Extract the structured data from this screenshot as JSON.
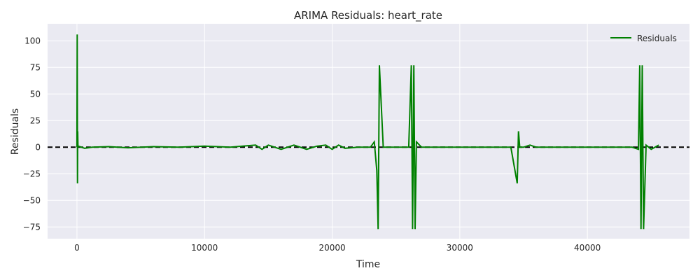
{
  "chart_data": {
    "type": "line",
    "title": "ARIMA Residuals: heart_rate",
    "xlabel": "Time",
    "ylabel": "Residuals",
    "xlim": [
      -2300,
      48000
    ],
    "ylim": [
      -86,
      116
    ],
    "xticks": [
      0,
      10000,
      20000,
      30000,
      40000
    ],
    "yticks": [
      -75,
      -50,
      -25,
      0,
      25,
      50,
      75,
      100
    ],
    "grid": true,
    "legend": {
      "position": "top-right",
      "entries": [
        "Residuals"
      ]
    },
    "reference_line": {
      "y": 0,
      "style": "dashed",
      "color": "#000000"
    },
    "series": [
      {
        "name": "Residuals",
        "color": "#008000",
        "x": [
          0,
          20,
          40,
          60,
          80,
          100,
          600,
          1200,
          2500,
          4000,
          6000,
          8000,
          10000,
          12000,
          14000,
          14500,
          15000,
          16000,
          17000,
          18000,
          18800,
          19500,
          20000,
          20500,
          21000,
          22000,
          23000,
          23300,
          23500,
          23600,
          23700,
          24000,
          25000,
          26000,
          26200,
          26300,
          26400,
          26500,
          26600,
          27000,
          28000,
          30000,
          32000,
          34000,
          34500,
          34600,
          34700,
          35000,
          35500,
          36000,
          38000,
          40000,
          42000,
          43500,
          44000,
          44100,
          44200,
          44300,
          44400,
          44600,
          45000,
          45600
        ],
        "y": [
          0,
          106,
          -34,
          15,
          0,
          1,
          -1,
          0,
          0.5,
          -0.5,
          0.5,
          0,
          1,
          0,
          2,
          -2,
          2,
          -2,
          2,
          -2,
          1,
          2,
          -2,
          2,
          -1,
          0,
          0,
          5,
          -22,
          -77,
          77,
          0,
          0,
          0,
          77,
          -77,
          77,
          -77,
          5,
          0,
          0,
          0,
          0,
          0,
          -34,
          15,
          0,
          0,
          2,
          0,
          0,
          0,
          0,
          0,
          -2,
          77,
          -77,
          77,
          -77,
          2,
          -2,
          2
        ]
      }
    ]
  }
}
